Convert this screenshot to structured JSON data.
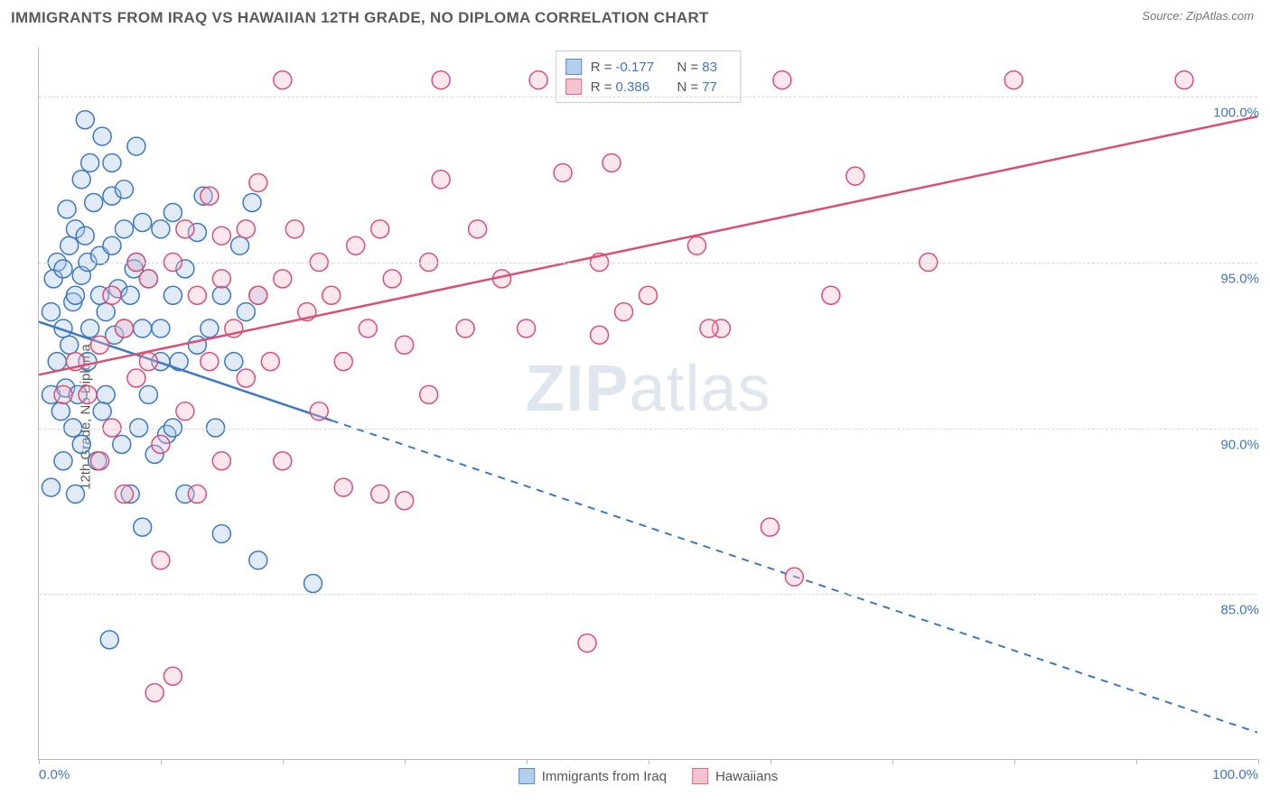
{
  "header": {
    "title": "IMMIGRANTS FROM IRAQ VS HAWAIIAN 12TH GRADE, NO DIPLOMA CORRELATION CHART",
    "source_label": "Source:",
    "source_value": "ZipAtlas.com"
  },
  "watermark": {
    "bold": "ZIP",
    "light": "atlas"
  },
  "chart": {
    "type": "scatter",
    "y_axis_label": "12th Grade, No Diploma",
    "background_color": "#ffffff",
    "grid_color": "#d8d8d8",
    "axis_color": "#b9b9b9",
    "text_color": "#5a5a5a",
    "value_color": "#4075c7",
    "xlim": [
      0,
      100
    ],
    "ylim": [
      80,
      101.5
    ],
    "x_ticks": [
      0,
      10,
      20,
      30,
      40,
      50,
      60,
      70,
      80,
      90,
      100
    ],
    "x_tick_labels": {
      "0": "0.0%",
      "100": "100.0%"
    },
    "y_gridlines": [
      85,
      90,
      95,
      100
    ],
    "y_tick_labels": {
      "85": "85.0%",
      "90": "90.0%",
      "95": "95.0%",
      "100": "100.0%"
    },
    "marker_radius": 10,
    "marker_stroke_width": 1.5,
    "marker_fill_opacity": 0.35,
    "line_width": 2.5,
    "series": [
      {
        "id": "iraq",
        "label": "Immigrants from Iraq",
        "stroke": "#3b78c4",
        "fill": "#a8c6ea",
        "R": "-0.177",
        "N": "83",
        "trend": {
          "x1": 0,
          "y1": 93.2,
          "x2": 100,
          "y2": 80.8,
          "solid_until_x": 24
        },
        "points": [
          [
            1,
            91
          ],
          [
            1,
            93.5
          ],
          [
            1.2,
            94.5
          ],
          [
            1.5,
            92
          ],
          [
            1.5,
            95
          ],
          [
            1.8,
            90.5
          ],
          [
            2,
            93
          ],
          [
            2,
            94.8
          ],
          [
            2.2,
            91.2
          ],
          [
            2.3,
            96.6
          ],
          [
            2.5,
            95.5
          ],
          [
            2.5,
            92.5
          ],
          [
            2.8,
            93.8
          ],
          [
            3,
            94
          ],
          [
            3,
            96
          ],
          [
            3.2,
            91
          ],
          [
            3.5,
            94.6
          ],
          [
            3.5,
            97.5
          ],
          [
            3.8,
            99.3
          ],
          [
            4,
            95
          ],
          [
            4,
            92
          ],
          [
            4.2,
            93
          ],
          [
            4.5,
            96.8
          ],
          [
            4.8,
            89
          ],
          [
            5,
            94
          ],
          [
            5,
            95.2
          ],
          [
            5.2,
            98.8
          ],
          [
            5.5,
            91
          ],
          [
            5.5,
            93.5
          ],
          [
            5.8,
            83.6
          ],
          [
            6,
            98
          ],
          [
            6,
            95.5
          ],
          [
            6.2,
            92.8
          ],
          [
            6.5,
            94.2
          ],
          [
            6.8,
            89.5
          ],
          [
            7,
            96
          ],
          [
            7,
            93
          ],
          [
            7.5,
            88
          ],
          [
            7.5,
            94
          ],
          [
            8,
            98.5
          ],
          [
            8,
            95
          ],
          [
            8.2,
            90
          ],
          [
            8.5,
            93
          ],
          [
            8.5,
            87
          ],
          [
            9,
            94.5
          ],
          [
            9,
            91
          ],
          [
            9.5,
            89.2
          ],
          [
            10,
            93
          ],
          [
            10,
            96
          ],
          [
            10,
            92
          ],
          [
            10.5,
            89.8
          ],
          [
            11,
            94
          ],
          [
            11,
            90
          ],
          [
            11.5,
            92
          ],
          [
            12,
            94.8
          ],
          [
            12,
            88
          ],
          [
            13,
            92.5
          ],
          [
            13,
            95.9
          ],
          [
            13.5,
            97
          ],
          [
            14,
            93
          ],
          [
            14.5,
            90
          ],
          [
            15,
            94
          ],
          [
            15,
            86.8
          ],
          [
            16,
            92
          ],
          [
            16.5,
            95.5
          ],
          [
            17,
            93.5
          ],
          [
            17.5,
            96.8
          ],
          [
            18,
            86
          ],
          [
            18,
            94
          ],
          [
            1,
            88.2
          ],
          [
            2,
            89
          ],
          [
            3,
            88
          ],
          [
            3.5,
            89.5
          ],
          [
            6,
            97
          ],
          [
            7,
            97.2
          ],
          [
            8.5,
            96.2
          ],
          [
            11,
            96.5
          ],
          [
            3.8,
            95.8
          ],
          [
            5.2,
            90.5
          ],
          [
            2.8,
            90
          ],
          [
            4.2,
            98
          ],
          [
            22.5,
            85.3
          ],
          [
            7.8,
            94.8
          ]
        ]
      },
      {
        "id": "hawaiians",
        "label": "Hawaiians",
        "stroke": "#d94f75",
        "fill": "#f3b9ca",
        "R": "0.386",
        "N": "77",
        "trend": {
          "x1": 0,
          "y1": 91.6,
          "x2": 100,
          "y2": 99.4,
          "solid_until_x": 100
        },
        "points": [
          [
            2,
            91
          ],
          [
            3,
            92
          ],
          [
            4,
            91
          ],
          [
            5,
            92.5
          ],
          [
            5,
            89
          ],
          [
            6,
            94
          ],
          [
            6,
            90
          ],
          [
            7,
            93
          ],
          [
            7,
            88
          ],
          [
            8,
            95
          ],
          [
            8,
            91.5
          ],
          [
            9,
            94.5
          ],
          [
            9,
            92
          ],
          [
            9.5,
            82
          ],
          [
            10,
            86
          ],
          [
            10,
            89.5
          ],
          [
            11,
            95
          ],
          [
            11,
            82.5
          ],
          [
            12,
            90.5
          ],
          [
            12,
            96
          ],
          [
            13,
            94
          ],
          [
            13,
            88
          ],
          [
            14,
            97
          ],
          [
            14,
            92
          ],
          [
            15,
            94.5
          ],
          [
            15,
            89
          ],
          [
            15,
            95.8
          ],
          [
            16,
            93
          ],
          [
            17,
            91.5
          ],
          [
            17,
            96
          ],
          [
            18,
            94
          ],
          [
            18,
            97.4
          ],
          [
            19,
            92
          ],
          [
            20,
            94.5
          ],
          [
            20,
            89
          ],
          [
            20,
            100.5
          ],
          [
            21,
            96
          ],
          [
            22,
            93.5
          ],
          [
            23,
            95
          ],
          [
            23,
            90.5
          ],
          [
            24,
            94
          ],
          [
            25,
            92
          ],
          [
            25,
            88.2
          ],
          [
            26,
            95.5
          ],
          [
            27,
            93
          ],
          [
            28,
            96
          ],
          [
            28,
            88
          ],
          [
            29,
            94.5
          ],
          [
            30,
            92.5
          ],
          [
            30,
            87.8
          ],
          [
            32,
            95
          ],
          [
            33,
            97.5
          ],
          [
            33,
            100.5
          ],
          [
            35,
            93
          ],
          [
            36,
            96
          ],
          [
            38,
            94.5
          ],
          [
            40,
            93
          ],
          [
            41,
            100.5
          ],
          [
            43,
            97.7
          ],
          [
            45,
            83.5
          ],
          [
            46,
            92.8
          ],
          [
            46,
            95
          ],
          [
            47,
            98
          ],
          [
            48,
            93.5
          ],
          [
            50,
            94
          ],
          [
            54,
            95.5
          ],
          [
            56,
            93
          ],
          [
            60,
            87
          ],
          [
            61,
            100.5
          ],
          [
            62,
            85.5
          ],
          [
            65,
            94
          ],
          [
            67,
            97.6
          ],
          [
            73,
            95
          ],
          [
            80,
            100.5
          ],
          [
            94,
            100.5
          ],
          [
            55,
            93
          ],
          [
            32,
            91
          ]
        ]
      }
    ]
  },
  "legend_bottom": [
    {
      "series": "iraq"
    },
    {
      "series": "hawaiians"
    }
  ]
}
